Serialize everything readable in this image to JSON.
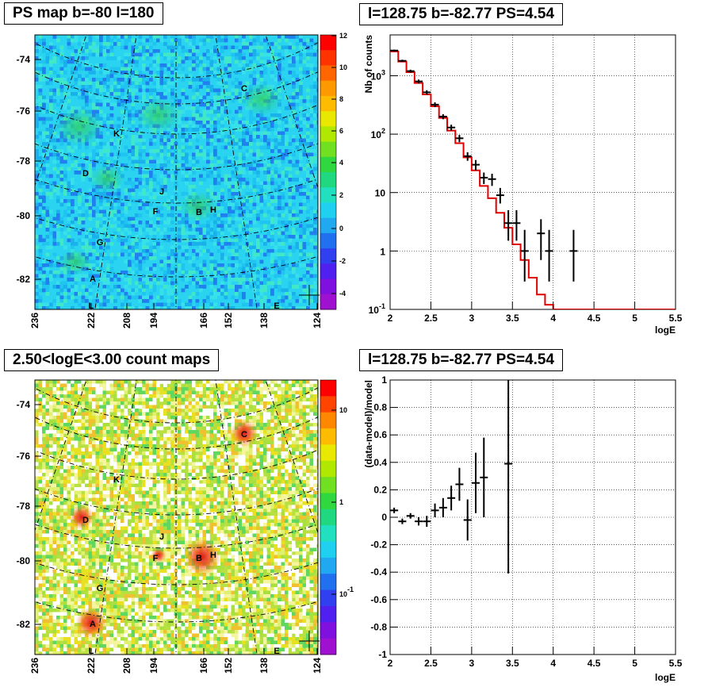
{
  "panels": {
    "map1_title": "PS map b=-80 l=180",
    "spec_title": "l=128.75 b=-82.77 PS=4.54",
    "map2_title": "2.50<logE<3.00 count maps",
    "resid_title": "l=128.75 b=-82.77 PS=4.54"
  },
  "map_axes": {
    "lat_ticks": [
      "-74",
      "-76",
      "-78",
      "-80",
      "-82"
    ],
    "lon_ticks": [
      "236",
      "222",
      "208",
      "194",
      "166",
      "152",
      "138",
      "124"
    ]
  },
  "sources": [
    "A",
    "B",
    "C",
    "D",
    "E",
    "F",
    "G",
    "H",
    "J",
    "K",
    "L"
  ],
  "map1_colorbar": {
    "ticks": [
      "12",
      "10",
      "8",
      "6",
      "4",
      "2",
      "0",
      "-2",
      "-4"
    ]
  },
  "map2_colorbar": {
    "ticks": [
      "10",
      "1",
      "10-1"
    ]
  },
  "chart_data": [
    {
      "type": "line",
      "title": "l=128.75 b=-82.77 PS=4.54",
      "xlabel": "logE",
      "ylabel": "Nb of counts",
      "xlim": [
        2,
        5.5
      ],
      "ylim": [
        0.1,
        5000
      ],
      "yscale": "log",
      "grid": true,
      "x_ticks": [
        "2",
        "2.5",
        "3",
        "3.5",
        "4",
        "4.5",
        "5",
        "5.5"
      ],
      "y_ticks": [
        "10-1",
        "1",
        "10",
        "102",
        "103"
      ],
      "series": [
        {
          "type": "step",
          "color": "#e00000",
          "bin_edges": [
            2.0,
            2.1,
            2.2,
            2.3,
            2.4,
            2.5,
            2.6,
            2.7,
            2.8,
            2.9,
            3.0,
            3.1,
            3.2,
            3.3,
            3.4,
            3.5,
            3.6,
            3.7,
            3.8,
            3.9,
            4.0,
            4.1,
            4.2,
            5.5
          ],
          "values": [
            2600,
            1750,
            1150,
            750,
            480,
            300,
            190,
            115,
            70,
            40,
            24,
            13,
            8,
            4.5,
            2.5,
            1.3,
            0.7,
            0.35,
            0.18,
            0.12,
            0.1,
            0.1,
            0.1
          ]
        },
        {
          "type": "errorbar",
          "color": "#000000",
          "x": [
            2.05,
            2.15,
            2.25,
            2.35,
            2.45,
            2.55,
            2.65,
            2.75,
            2.85,
            2.95,
            3.05,
            3.15,
            3.25,
            3.35,
            3.45,
            3.55,
            3.65,
            3.85,
            3.95,
            4.25
          ],
          "y": [
            2700,
            1800,
            1200,
            800,
            520,
            320,
            200,
            130,
            85,
            42,
            30,
            18,
            17,
            9,
            3,
            3,
            1,
            2,
            1,
            1
          ],
          "y_lo": [
            2600,
            1720,
            1130,
            740,
            475,
            290,
            180,
            115,
            73,
            35,
            24,
            14,
            13,
            6.5,
            1.5,
            1.5,
            0.3,
            0.7,
            0.3,
            0.3
          ],
          "y_hi": [
            2800,
            1880,
            1270,
            860,
            565,
            350,
            220,
            145,
            97,
            49,
            36,
            22,
            21,
            12,
            5,
            5,
            2.3,
            3.5,
            2.3,
            2.3
          ]
        }
      ]
    },
    {
      "type": "scatter",
      "title": "l=128.75 b=-82.77 PS=4.54",
      "xlabel": "logE",
      "ylabel": "(data-model)/model",
      "xlim": [
        2,
        5.5
      ],
      "ylim": [
        -1,
        1
      ],
      "grid": true,
      "x_ticks": [
        "2",
        "2.5",
        "3",
        "3.5",
        "4",
        "4.5",
        "5",
        "5.5"
      ],
      "y_ticks": [
        "-1",
        "-0.8",
        "-0.6",
        "-0.4",
        "-0.2",
        "0",
        "0.2",
        "0.4",
        "0.6",
        "0.8",
        "1"
      ],
      "series": [
        {
          "type": "errorbar",
          "color": "#000000",
          "x": [
            2.05,
            2.15,
            2.25,
            2.35,
            2.45,
            2.55,
            2.65,
            2.75,
            2.85,
            2.95,
            3.05,
            3.15,
            3.45
          ],
          "y": [
            0.05,
            -0.03,
            0.01,
            -0.03,
            -0.03,
            0.05,
            0.07,
            0.14,
            0.24,
            -0.02,
            0.25,
            0.29,
            0.39
          ],
          "y_err": [
            0.02,
            0.02,
            0.02,
            0.03,
            0.04,
            0.05,
            0.07,
            0.09,
            0.12,
            0.15,
            0.22,
            0.29,
            0.8
          ]
        }
      ]
    }
  ]
}
